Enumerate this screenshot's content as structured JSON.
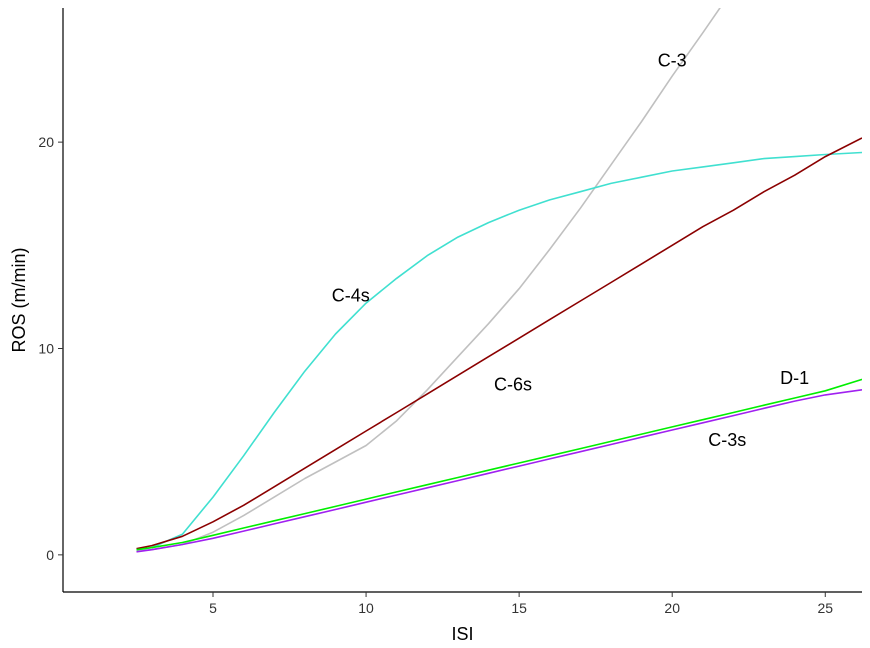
{
  "chart_data": {
    "type": "line",
    "title": "",
    "xlabel": "ISI",
    "ylabel": "ROS (m/min)",
    "xlim": [
      0.1,
      26.2
    ],
    "ylim": [
      -1.8,
      26.5
    ],
    "x_ticks": [
      5,
      10,
      15,
      20,
      25
    ],
    "y_ticks": [
      0,
      10,
      20
    ],
    "grid": false,
    "legend": "none",
    "series": [
      {
        "name": "C-3",
        "color": "#c0c0c0",
        "label_at": [
          20,
          23.9
        ],
        "points": [
          [
            2.5,
            0.2
          ],
          [
            3,
            0.25
          ],
          [
            4,
            0.5
          ],
          [
            5,
            1.1
          ],
          [
            6,
            1.9
          ],
          [
            7,
            2.8
          ],
          [
            8,
            3.7
          ],
          [
            9,
            4.5
          ],
          [
            10,
            5.3
          ],
          [
            11,
            6.5
          ],
          [
            12,
            8.0
          ],
          [
            13,
            9.6
          ],
          [
            14,
            11.2
          ],
          [
            15,
            12.9
          ],
          [
            16,
            14.8
          ],
          [
            17,
            16.8
          ],
          [
            18,
            18.9
          ],
          [
            19,
            21.0
          ],
          [
            20,
            23.2
          ],
          [
            21,
            25.3
          ],
          [
            21.7,
            26.8
          ]
        ]
      },
      {
        "name": "C-4s",
        "color": "#40e0d0",
        "label_at": [
          9.5,
          12.5
        ],
        "points": [
          [
            2.5,
            0.25
          ],
          [
            3,
            0.35
          ],
          [
            4,
            1.0
          ],
          [
            5,
            2.8
          ],
          [
            6,
            4.8
          ],
          [
            7,
            6.9
          ],
          [
            8,
            8.9
          ],
          [
            9,
            10.7
          ],
          [
            10,
            12.2
          ],
          [
            11,
            13.4
          ],
          [
            12,
            14.5
          ],
          [
            13,
            15.4
          ],
          [
            14,
            16.1
          ],
          [
            15,
            16.7
          ],
          [
            16,
            17.2
          ],
          [
            17,
            17.6
          ],
          [
            18,
            18.0
          ],
          [
            19,
            18.3
          ],
          [
            20,
            18.6
          ],
          [
            21,
            18.8
          ],
          [
            22,
            19.0
          ],
          [
            23,
            19.2
          ],
          [
            24,
            19.3
          ],
          [
            25,
            19.4
          ],
          [
            26.2,
            19.5
          ]
        ]
      },
      {
        "name": "C-6s",
        "color": "#8b0000",
        "label_at": [
          14.8,
          8.2
        ],
        "points": [
          [
            2.5,
            0.3
          ],
          [
            3,
            0.45
          ],
          [
            4,
            0.9
          ],
          [
            5,
            1.6
          ],
          [
            6,
            2.4
          ],
          [
            7,
            3.3
          ],
          [
            8,
            4.2
          ],
          [
            9,
            5.1
          ],
          [
            10,
            6.0
          ],
          [
            11,
            6.9
          ],
          [
            12,
            7.8
          ],
          [
            13,
            8.7
          ],
          [
            14,
            9.6
          ],
          [
            15,
            10.5
          ],
          [
            16,
            11.4
          ],
          [
            17,
            12.3
          ],
          [
            18,
            13.2
          ],
          [
            19,
            14.1
          ],
          [
            20,
            15.0
          ],
          [
            21,
            15.9
          ],
          [
            22,
            16.7
          ],
          [
            23,
            17.6
          ],
          [
            24,
            18.4
          ],
          [
            25,
            19.3
          ],
          [
            26.2,
            20.2
          ]
        ]
      },
      {
        "name": "D-1",
        "color": "#00ee00",
        "label_at": [
          24,
          8.5
        ],
        "points": [
          [
            2.5,
            0.25
          ],
          [
            3,
            0.35
          ],
          [
            4,
            0.6
          ],
          [
            5,
            0.95
          ],
          [
            6,
            1.3
          ],
          [
            7,
            1.65
          ],
          [
            8,
            2.0
          ],
          [
            9,
            2.35
          ],
          [
            10,
            2.7
          ],
          [
            11,
            3.05
          ],
          [
            12,
            3.4
          ],
          [
            13,
            3.75
          ],
          [
            14,
            4.1
          ],
          [
            15,
            4.45
          ],
          [
            16,
            4.8
          ],
          [
            17,
            5.15
          ],
          [
            18,
            5.5
          ],
          [
            19,
            5.85
          ],
          [
            20,
            6.2
          ],
          [
            21,
            6.55
          ],
          [
            22,
            6.9
          ],
          [
            23,
            7.25
          ],
          [
            24,
            7.6
          ],
          [
            25,
            7.95
          ],
          [
            26.2,
            8.5
          ]
        ]
      },
      {
        "name": "C-3s",
        "color": "#a020f0",
        "label_at": [
          21.8,
          5.5
        ],
        "points": [
          [
            2.5,
            0.15
          ],
          [
            3,
            0.25
          ],
          [
            4,
            0.5
          ],
          [
            5,
            0.8
          ],
          [
            6,
            1.15
          ],
          [
            7,
            1.5
          ],
          [
            8,
            1.85
          ],
          [
            9,
            2.2
          ],
          [
            10,
            2.55
          ],
          [
            11,
            2.9
          ],
          [
            12,
            3.25
          ],
          [
            13,
            3.6
          ],
          [
            14,
            3.95
          ],
          [
            15,
            4.3
          ],
          [
            16,
            4.65
          ],
          [
            17,
            5.0
          ],
          [
            18,
            5.35
          ],
          [
            19,
            5.7
          ],
          [
            20,
            6.05
          ],
          [
            21,
            6.4
          ],
          [
            22,
            6.75
          ],
          [
            23,
            7.1
          ],
          [
            24,
            7.45
          ],
          [
            25,
            7.75
          ],
          [
            26.2,
            8.0
          ]
        ]
      }
    ]
  }
}
